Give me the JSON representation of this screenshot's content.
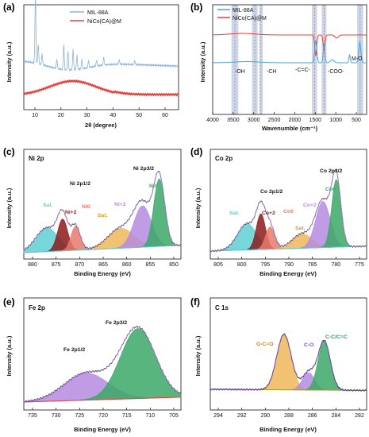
{
  "panels": {
    "a": {
      "label": "(a)",
      "xlabel": "2θ (degree)",
      "ylabel": "Intensity (a.u.)",
      "xticks": [
        "10",
        "20",
        "30",
        "40",
        "50",
        "60"
      ],
      "legend": [
        "MIL-88A",
        "NiCo(CA)@M"
      ]
    },
    "b": {
      "label": "(b)",
      "xlabel": "Wavenumble (cm⁻¹)",
      "ylabel": "Intensity (a.u.)",
      "xticks": [
        "4000",
        "3500",
        "3000",
        "2500",
        "2000",
        "1500",
        "1000",
        "500"
      ],
      "legend": [
        "MIL-88A",
        "NiCo(CA)@M"
      ],
      "annotations": [
        "-OH",
        "-CH",
        "-C=C-",
        "-COO-",
        "M-O"
      ]
    },
    "c": {
      "label": "(c)",
      "title": "Ni 2p",
      "xlabel": "Binding Energy (eV)",
      "ylabel": "Intensity (a.u.)",
      "xticks": [
        "880",
        "875",
        "870",
        "865",
        "860",
        "855",
        "850"
      ],
      "annotations": [
        "Ni 2p1/2",
        "Ni 2p3/2",
        "Ni+2",
        "Ni0",
        "Sat.",
        "Ni+2",
        "Ni0",
        "Sat."
      ]
    },
    "d": {
      "label": "(d)",
      "title": "Co 2p",
      "xlabel": "Binding Energy (eV)",
      "ylabel": "Intensity (a.u.)",
      "xticks": [
        "805",
        "800",
        "795",
        "790",
        "785",
        "780",
        "775"
      ],
      "annotations": [
        "Co 2p1/2",
        "Co 2p3/2",
        "Co+2",
        "Co0",
        "Sat.",
        "Co+2",
        "Co0",
        "Sat."
      ]
    },
    "e": {
      "label": "(e)",
      "title": "Fe 2p",
      "xlabel": "Binding Energy (eV)",
      "ylabel": "Intensity (a.u.)",
      "xticks": [
        "735",
        "730",
        "725",
        "720",
        "715",
        "710",
        "705"
      ],
      "annotations": [
        "Fe 2p1/2",
        "Fe 2p3/2"
      ]
    },
    "f": {
      "label": "(f)",
      "title": "C 1s",
      "xlabel": "Binding Energy (eV)",
      "ylabel": "Intensity (a.u.)",
      "xticks": [
        "294",
        "292",
        "290",
        "288",
        "286",
        "284",
        "282"
      ],
      "annotations": [
        "O-C=O",
        "C-O",
        "C-C/C=C"
      ]
    }
  },
  "colors": {
    "mil": "#8fb3dc",
    "nico": "#e8413c",
    "band": "#c9d7ea",
    "cyan": "#5fcfd3",
    "darkred": "#8b1a1a",
    "salmon": "#e8796a",
    "orange": "#f0b75a",
    "violet": "#b58be0",
    "green": "#3aa866",
    "olive": "#a8a22a"
  },
  "chart_data": [
    {
      "type": "line",
      "panel": "a",
      "x_range": [
        5,
        65
      ],
      "series": [
        {
          "name": "MIL-88A",
          "peaks": [
            9.5,
            10.5,
            12.0,
            17.5,
            20.5,
            22.0,
            24.0,
            25.5,
            27.5,
            30.0,
            33.0,
            36.0
          ]
        },
        {
          "name": "NiCo(CA)@M",
          "shape": "broad hump 20-35"
        }
      ]
    },
    {
      "type": "line",
      "panel": "b",
      "x_range": [
        4000,
        400
      ],
      "series": [
        {
          "name": "MIL-88A",
          "dips": [
            1600,
            1400,
            560
          ]
        },
        {
          "name": "NiCo(CA)@M",
          "dips": [
            1600,
            1400
          ]
        }
      ],
      "bands": [
        3450,
        3000,
        2900,
        1600,
        1400,
        550
      ]
    },
    {
      "type": "line",
      "panel": "c",
      "x_range": [
        882,
        848
      ],
      "peaks": [
        {
          "label": "Sat.",
          "center": 877
        },
        {
          "label": "Ni+2",
          "center": 873.5
        },
        {
          "label": "Ni0",
          "center": 870.5
        },
        {
          "label": "Sat.",
          "center": 861
        },
        {
          "label": "Ni+2",
          "center": 856
        },
        {
          "label": "Ni0",
          "center": 852.5
        }
      ]
    },
    {
      "type": "line",
      "panel": "d",
      "x_range": [
        806,
        772
      ],
      "peaks": [
        {
          "label": "Sat.",
          "center": 798
        },
        {
          "label": "Co+2",
          "center": 795
        },
        {
          "label": "Co0",
          "center": 793
        },
        {
          "label": "Sat.",
          "center": 785
        },
        {
          "label": "Co+2",
          "center": 781.5
        },
        {
          "label": "Co0",
          "center": 778.5
        }
      ]
    },
    {
      "type": "line",
      "panel": "e",
      "x_range": [
        737,
        703
      ],
      "peaks": [
        {
          "label": "Fe 2p1/2",
          "center": 724
        },
        {
          "label": "Fe 2p3/2",
          "center": 712
        }
      ]
    },
    {
      "type": "line",
      "panel": "f",
      "x_range": [
        295,
        281
      ],
      "peaks": [
        {
          "label": "O-C=O",
          "center": 288.5
        },
        {
          "label": "C-O",
          "center": 286.2
        },
        {
          "label": "C-C/C=C",
          "center": 284.8
        }
      ]
    }
  ]
}
